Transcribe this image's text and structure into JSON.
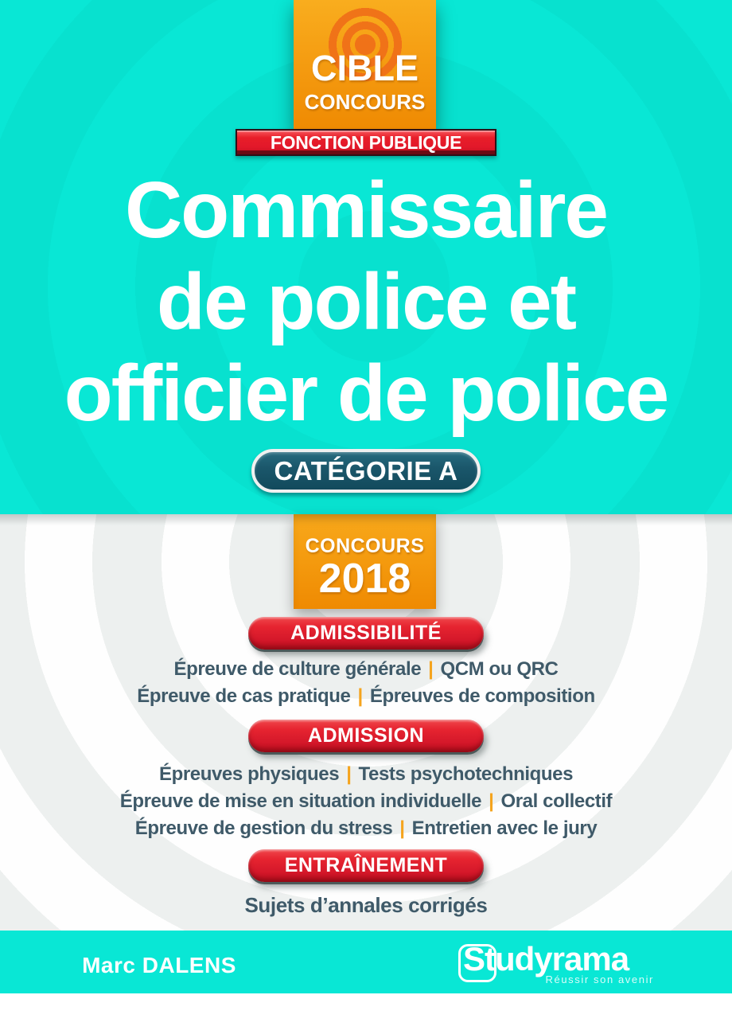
{
  "cover": {
    "collection": {
      "brand_top": "CIBLE",
      "brand_bottom": "CONCOURS",
      "banner": "FONCTION PUBLIQUE"
    },
    "title_lines": [
      "Commissaire",
      "de police et",
      "officier de police"
    ],
    "category_badge": "CATÉGORIE A",
    "concours": {
      "label": "CONCOURS",
      "year": "2018"
    },
    "separator": "|",
    "sections": [
      {
        "button": "ADMISSIBILITÉ",
        "lines": [
          [
            "Épreuve de culture générale",
            "QCM ou QRC"
          ],
          [
            "Épreuve de cas pratique",
            "Épreuves de composition"
          ]
        ]
      },
      {
        "button": "ADMISSION",
        "lines": [
          [
            "Épreuves physiques",
            "Tests psychotechniques"
          ],
          [
            "Épreuve de mise en situation individuelle",
            "Oral collectif"
          ],
          [
            "Épreuve de gestion du stress",
            "Entretien avec le jury"
          ]
        ]
      },
      {
        "button": "ENTRAÎNEMENT",
        "lines": [
          [
            "Sujets d’annales corrigés"
          ]
        ]
      }
    ],
    "author": "Marc DALENS",
    "publisher": {
      "name": "Studyrama",
      "tagline": "Réussir son avenir"
    },
    "colors": {
      "cyan": "#09E7D5",
      "orange": "#F49A0E",
      "red": "#E2182A",
      "teal_badge": "#1A566A",
      "body_text": "#3F5A69",
      "pipe_orange": "#F5A41E"
    }
  }
}
